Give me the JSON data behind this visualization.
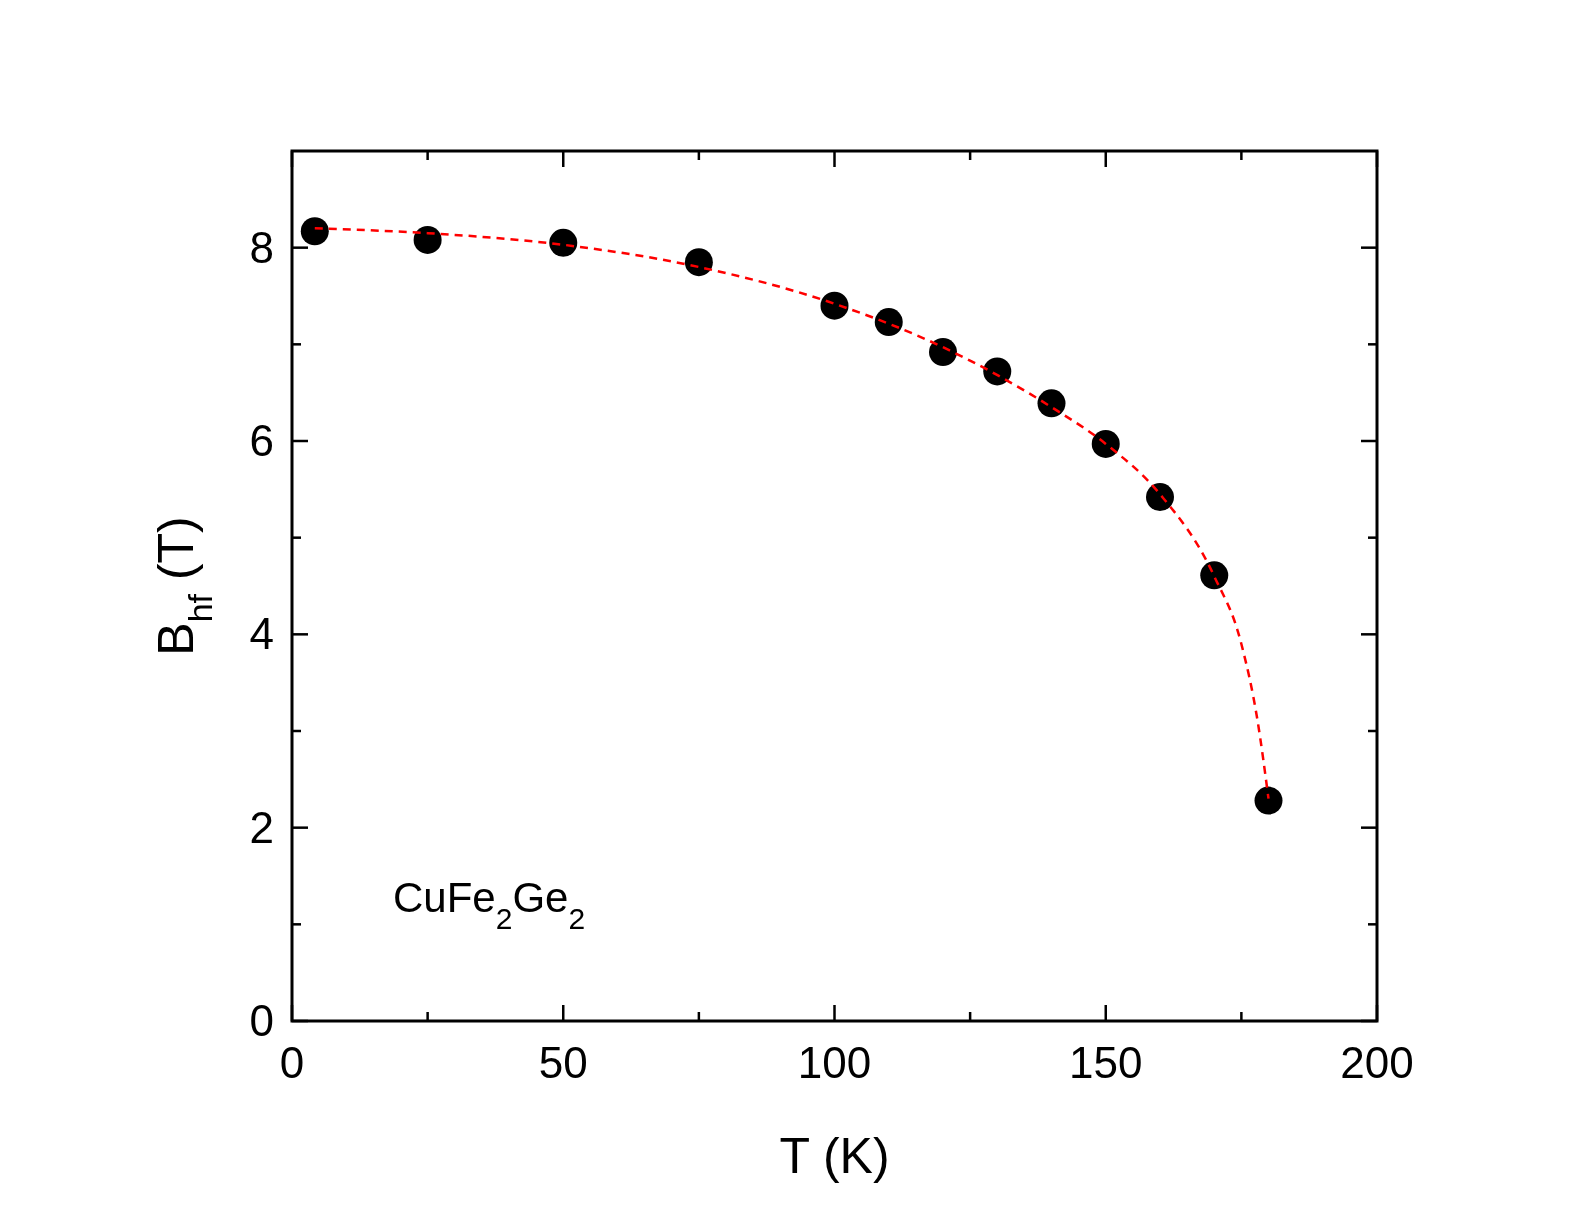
{
  "chart_data": {
    "type": "scatter",
    "xlabel": "T (K)",
    "ylabel": "B$_{hf}$ (T)",
    "annotations": [
      "CuFe$_{2}$Ge$_{2}$"
    ],
    "xlim": [
      0,
      200
    ],
    "ylim": [
      0,
      9
    ],
    "xticks": [
      0,
      {
        "value": 25,
        "label": null
      },
      50,
      {
        "value": 75,
        "label": null
      },
      100,
      {
        "value": 125,
        "label": null
      },
      150,
      {
        "value": 175,
        "label": null
      },
      200
    ],
    "yticks": [
      0,
      {
        "value": 1,
        "label": null
      },
      2,
      {
        "value": 3,
        "label": null
      },
      4,
      {
        "value": 5,
        "label": null
      },
      6,
      {
        "value": 7,
        "label": null
      },
      8
    ],
    "grid": false,
    "series": [
      {
        "color": "#000000",
        "marker": "circle",
        "x": [
          4.2,
          25,
          50,
          75,
          100,
          110,
          120,
          130,
          140,
          150,
          160,
          170,
          180
        ],
        "values": [
          8.17,
          8.08,
          8.05,
          7.85,
          7.4,
          7.23,
          6.92,
          6.72,
          6.39,
          5.97,
          5.42,
          4.61,
          2.28
        ]
      },
      {
        "type": "line",
        "color": "#ff0000",
        "line_style": "dashed",
        "x": [
          4.2,
          25,
          50,
          75,
          100,
          120,
          140,
          150,
          160,
          170,
          175,
          178,
          180
        ],
        "values": [
          8.2,
          8.15,
          8.03,
          7.8,
          7.42,
          6.97,
          6.35,
          5.97,
          5.45,
          4.6,
          3.9,
          3.1,
          2.3
        ]
      }
    ]
  }
}
